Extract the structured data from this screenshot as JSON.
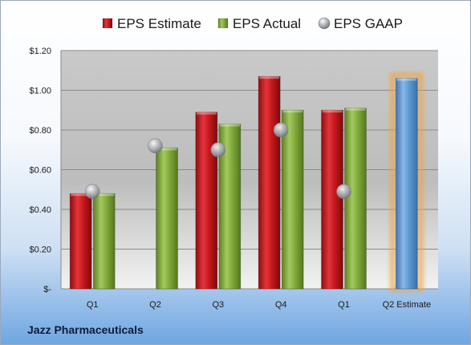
{
  "company": "Jazz Pharmaceuticals",
  "chart_data": {
    "type": "bar",
    "categories": [
      "Q1",
      "Q2",
      "Q3",
      "Q4",
      "Q1",
      "Q2 Estimate"
    ],
    "series": [
      {
        "name": "EPS Estimate",
        "color": "#c8191e",
        "values": [
          0.48,
          null,
          0.89,
          1.07,
          0.9,
          null
        ]
      },
      {
        "name": "EPS Actual",
        "color": "#82ac3c",
        "values": [
          0.48,
          0.71,
          0.83,
          0.9,
          0.91,
          null
        ]
      },
      {
        "name": "EPS GAAP",
        "color": "#a9acb1",
        "marker": "sphere",
        "values": [
          0.49,
          0.72,
          0.7,
          0.8,
          0.49,
          null
        ]
      },
      {
        "name": "Q2 Estimate",
        "color": "#5b9bd5",
        "highlight": "#f3a23c",
        "values": [
          null,
          null,
          null,
          null,
          null,
          1.06
        ]
      }
    ],
    "ylim": [
      0,
      1.2
    ],
    "yticks": [
      0,
      0.2,
      0.4,
      0.6,
      0.8,
      1.0,
      1.2
    ],
    "ytick_labels": [
      "$-",
      "$0.20",
      "$0.40",
      "$0.60",
      "$0.80",
      "$1.00",
      "$1.20"
    ],
    "legend": {
      "position": "top",
      "entries": [
        "EPS Estimate",
        "EPS Actual",
        "EPS GAAP"
      ]
    },
    "grid": true
  }
}
